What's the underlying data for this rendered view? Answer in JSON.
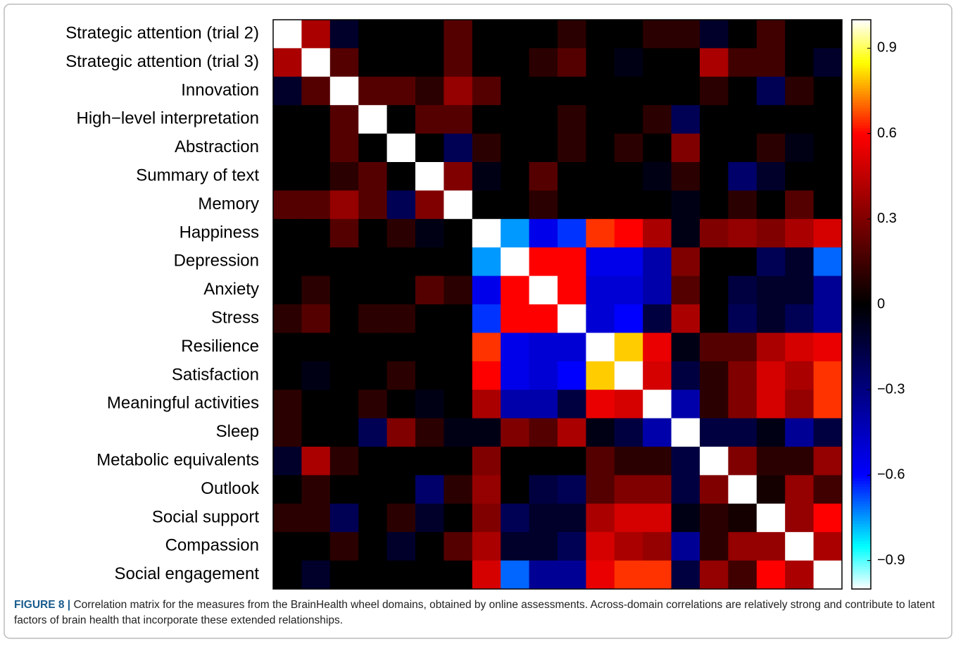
{
  "chart_data": {
    "type": "heatmap",
    "categories": [
      "Strategic attention (trial 2)",
      "Strategic attention (trial 3)",
      "Innovation",
      "High−level interpretation",
      "Abstraction",
      "Summary of text",
      "Memory",
      "Happiness",
      "Depression",
      "Anxiety",
      "Stress",
      "Resilience",
      "Satisfaction",
      "Meaningful activities",
      "Sleep",
      "Metabolic equivalents",
      "Outlook",
      "Social support",
      "Compassion",
      "Social engagement"
    ],
    "z": [
      [
        1,
        0.4,
        -0.1,
        0,
        0,
        0,
        0.2,
        0,
        0,
        0,
        0.1,
        0,
        0,
        0.1,
        0.1,
        -0.1,
        0,
        0.15,
        0,
        0
      ],
      [
        0.4,
        1,
        0.2,
        0,
        0,
        0,
        0.2,
        0,
        0,
        0.1,
        0.2,
        0,
        -0.05,
        0,
        0,
        0.4,
        0.15,
        0.15,
        0,
        -0.1
      ],
      [
        -0.1,
        0.2,
        1,
        0.2,
        0.2,
        0.1,
        0.35,
        0.2,
        0,
        0,
        0,
        0,
        0,
        0,
        0,
        0.1,
        0,
        -0.2,
        0.1,
        0
      ],
      [
        0,
        0,
        0.2,
        1,
        0,
        0.2,
        0.2,
        0,
        0,
        0,
        0.1,
        0,
        0,
        0.1,
        -0.2,
        0,
        0,
        0,
        0,
        0
      ],
      [
        0,
        0,
        0.2,
        0,
        1,
        0,
        -0.2,
        0.1,
        0,
        0,
        0.1,
        0,
        0.1,
        0,
        0.3,
        0,
        0,
        0.1,
        -0.05,
        0
      ],
      [
        0,
        0,
        0.1,
        0.2,
        0,
        1,
        0.3,
        -0.05,
        0,
        0.2,
        0,
        0,
        0,
        -0.05,
        0.1,
        0,
        -0.25,
        -0.1,
        0,
        0
      ],
      [
        0.2,
        0.2,
        0.35,
        0.2,
        -0.2,
        0.3,
        1,
        0,
        0,
        0.1,
        0,
        0,
        0,
        0,
        -0.05,
        0,
        0.1,
        0,
        0.2,
        0
      ],
      [
        0,
        0,
        0.2,
        0,
        0.1,
        -0.05,
        0,
        1,
        -0.75,
        -0.55,
        -0.65,
        0.65,
        0.6,
        0.4,
        -0.05,
        0.3,
        0.35,
        0.3,
        0.4,
        0.5
      ],
      [
        0,
        0,
        0,
        0,
        0,
        0,
        0,
        -0.75,
        1,
        0.6,
        0.6,
        -0.55,
        -0.55,
        -0.4,
        0.3,
        0,
        0,
        -0.2,
        -0.1,
        -0.7
      ],
      [
        0,
        0.1,
        0,
        0,
        0,
        0.2,
        0.1,
        -0.55,
        0.6,
        1,
        0.6,
        -0.5,
        -0.5,
        -0.4,
        0.2,
        0,
        -0.15,
        -0.1,
        -0.1,
        -0.35
      ],
      [
        0.1,
        0.2,
        0,
        0.1,
        0.1,
        0,
        0,
        -0.65,
        0.6,
        0.6,
        1,
        -0.5,
        -0.6,
        -0.15,
        0.4,
        0,
        -0.2,
        -0.1,
        -0.2,
        -0.35
      ],
      [
        0,
        0,
        0,
        0,
        0,
        0,
        0,
        0.65,
        -0.55,
        -0.5,
        -0.5,
        1,
        0.8,
        0.55,
        -0.05,
        0.2,
        0.2,
        0.4,
        0.5,
        0.55
      ],
      [
        0,
        -0.05,
        0,
        0,
        0.1,
        0,
        0,
        0.6,
        -0.55,
        -0.5,
        -0.6,
        0.8,
        1,
        0.5,
        -0.15,
        0.1,
        0.3,
        0.5,
        0.4,
        0.65
      ],
      [
        0.1,
        0,
        0,
        0.1,
        0,
        -0.05,
        0,
        0.4,
        -0.4,
        -0.4,
        -0.15,
        0.55,
        0.5,
        1,
        -0.4,
        0.1,
        0.3,
        0.5,
        0.35,
        0.65
      ],
      [
        0.1,
        0,
        0,
        -0.2,
        0.3,
        0.1,
        -0.05,
        -0.05,
        0.3,
        0.2,
        0.4,
        -0.05,
        -0.15,
        -0.4,
        1,
        -0.15,
        -0.15,
        -0.05,
        -0.35,
        -0.15
      ],
      [
        -0.1,
        0.4,
        0.1,
        0,
        0,
        0,
        0,
        0.3,
        0,
        0,
        0,
        0.2,
        0.1,
        0.1,
        -0.15,
        1,
        0.3,
        0.1,
        0.1,
        0.35
      ],
      [
        0,
        0.1,
        0,
        0,
        0,
        -0.25,
        0.1,
        0.35,
        0,
        -0.15,
        -0.2,
        0.2,
        0.3,
        0.3,
        -0.15,
        0.3,
        1,
        0.05,
        0.35,
        0.15
      ],
      [
        0.1,
        0.1,
        -0.2,
        0,
        0.1,
        -0.1,
        0,
        0.3,
        -0.2,
        -0.1,
        -0.1,
        0.4,
        0.5,
        0.5,
        -0.05,
        0.1,
        0.05,
        1,
        0.35,
        0.6
      ],
      [
        0,
        0,
        0.1,
        0,
        -0.1,
        0,
        0.2,
        0.4,
        -0.1,
        -0.1,
        -0.2,
        0.5,
        0.4,
        0.35,
        -0.35,
        0.1,
        0.35,
        0.35,
        1,
        0.4
      ],
      [
        0,
        -0.1,
        0,
        0,
        0,
        0,
        0,
        0.5,
        -0.7,
        -0.35,
        -0.35,
        0.55,
        0.65,
        0.65,
        -0.15,
        0.35,
        0.15,
        0.6,
        0.4,
        1
      ]
    ],
    "zlim": [
      -1,
      1
    ],
    "zticks": [
      {
        "value": -0.9,
        "label": "−0.9"
      },
      {
        "value": -0.6,
        "label": "−0.6"
      },
      {
        "value": -0.3,
        "label": "−0.3"
      },
      0,
      0.3,
      0.6,
      0.9
    ],
    "caption_label": "FIGURE 8 |",
    "caption": "Correlation matrix for the measures from the BrainHealth wheel domains, obtained by online assessments. Across-domain correlations are relatively strong and contribute to latent factors of brain health that incorporate these extended relationships."
  }
}
